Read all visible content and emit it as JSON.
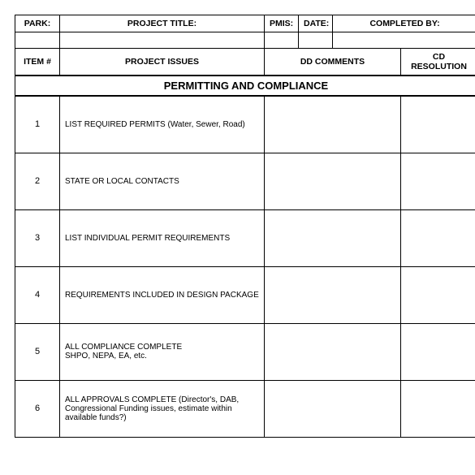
{
  "header": {
    "park": "PARK:",
    "project_title": "PROJECT TITLE:",
    "pmis": "PMIS:",
    "date": "DATE:",
    "completed_by": "COMPLETED BY:",
    "item_num": "ITEM #",
    "project_issues": "PROJECT ISSUES",
    "dd_comments": "DD COMMENTS",
    "cd_resolution": "CD RESOLUTION"
  },
  "section_title": "PERMITTING AND COMPLIANCE",
  "rows": [
    {
      "num": "1",
      "issue": "LIST REQUIRED PERMITS (Water, Sewer, Road)"
    },
    {
      "num": "2",
      "issue": "STATE OR LOCAL CONTACTS"
    },
    {
      "num": "3",
      "issue": "LIST INDIVIDUAL PERMIT REQUIREMENTS"
    },
    {
      "num": "4",
      "issue": "REQUIREMENTS INCLUDED IN DESIGN PACKAGE"
    },
    {
      "num": "5",
      "issue": "ALL COMPLIANCE COMPLETE\nSHPO, NEPA, EA, etc."
    },
    {
      "num": "6",
      "issue": "ALL APPROVALS COMPLETE (Director's, DAB, Congressional Funding issues, estimate within available funds?)"
    }
  ],
  "colors": {
    "border": "#000000",
    "background": "#ffffff",
    "text": "#000000"
  }
}
